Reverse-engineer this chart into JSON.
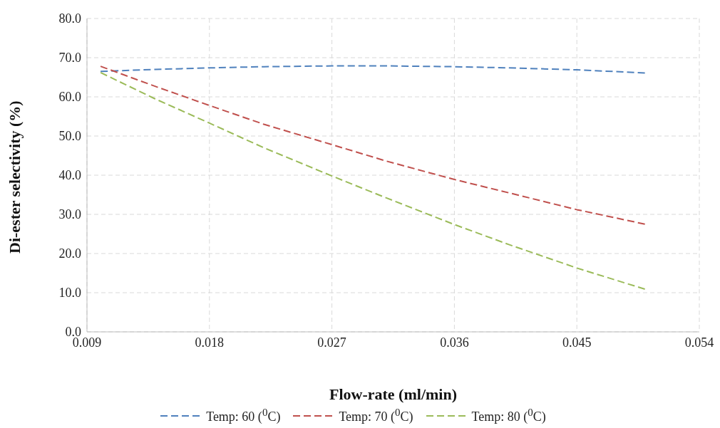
{
  "chart_data": {
    "type": "line",
    "xlabel": "Flow-rate (ml/min)",
    "ylabel": "Di-ester selectivity (%)",
    "x": [
      0.01,
      0.014,
      0.018,
      0.022,
      0.027,
      0.031,
      0.036,
      0.04,
      0.045,
      0.05
    ],
    "series": [
      {
        "name": "Temp: 60 ($^{0}$C)",
        "color": "#4f81bd",
        "values": [
          66.5,
          67.0,
          67.4,
          67.7,
          67.9,
          67.9,
          67.7,
          67.4,
          66.9,
          66.1
        ]
      },
      {
        "name": "Temp: 70 ($^{0}$C)",
        "color": "#c0504d",
        "values": [
          67.8,
          62.7,
          57.8,
          53.0,
          47.8,
          43.6,
          38.9,
          35.5,
          31.2,
          27.5
        ]
      },
      {
        "name": "Temp: 80 ($^{0}$C)",
        "color": "#9bbb59",
        "values": [
          66.2,
          59.5,
          53.3,
          47.0,
          39.8,
          34.2,
          27.4,
          22.3,
          16.3,
          10.9
        ]
      }
    ],
    "xlim": [
      0.009,
      0.054
    ],
    "xticks": [
      0.009,
      0.018,
      0.027,
      0.036,
      0.045,
      0.054
    ],
    "ylim": [
      0,
      80
    ],
    "yticks": [
      {
        "value": 0,
        "label": "0.0"
      },
      {
        "value": 10,
        "label": "10.0"
      },
      {
        "value": 20,
        "label": "20.0"
      },
      {
        "value": 30,
        "label": "30.0"
      },
      {
        "value": 40,
        "label": "40.0"
      },
      {
        "value": 50,
        "label": "50.0"
      },
      {
        "value": 60,
        "label": "60.0"
      },
      {
        "value": 70,
        "label": "70.0"
      },
      {
        "value": 80,
        "label": "80.0"
      }
    ],
    "grid": true,
    "legend": "bottom",
    "marker": "none",
    "line_style": "dashed"
  }
}
